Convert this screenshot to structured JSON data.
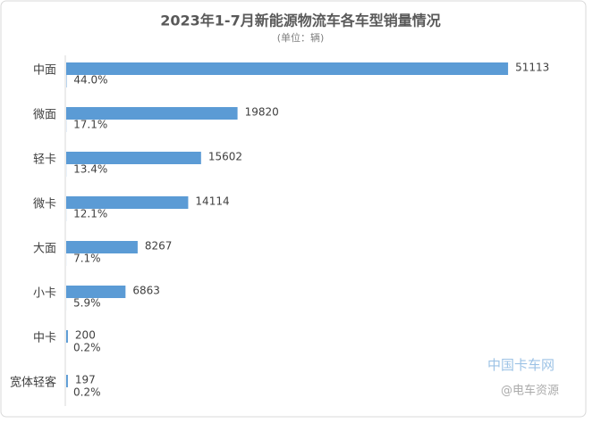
{
  "chart_data": {
    "type": "bar",
    "orientation": "horizontal",
    "title": "2023年1-7月新能源物流车各车型销量情况",
    "subtitle": "(单位：辆)",
    "categories": [
      "中面",
      "微面",
      "轻卡",
      "微卡",
      "大面",
      "小卡",
      "中卡",
      "宽体轻客"
    ],
    "series": [
      {
        "color": "#5b9bd5",
        "values": [
          51113,
          19820,
          15602,
          14114,
          8267,
          6863,
          200,
          197
        ]
      },
      {
        "color": "#5b9bd5",
        "values": [
          44.0,
          17.1,
          13.4,
          12.1,
          7.1,
          5.9,
          0.2,
          0.2
        ],
        "value_labels": [
          "44.0%",
          "17.1%",
          "13.4%",
          "12.1%",
          "7.1%",
          "5.9%",
          "0.2%",
          "0.2%"
        ]
      }
    ],
    "xlim": [
      0,
      60000
    ],
    "watermark": [
      "中国卡车网",
      "@电车资源"
    ]
  }
}
